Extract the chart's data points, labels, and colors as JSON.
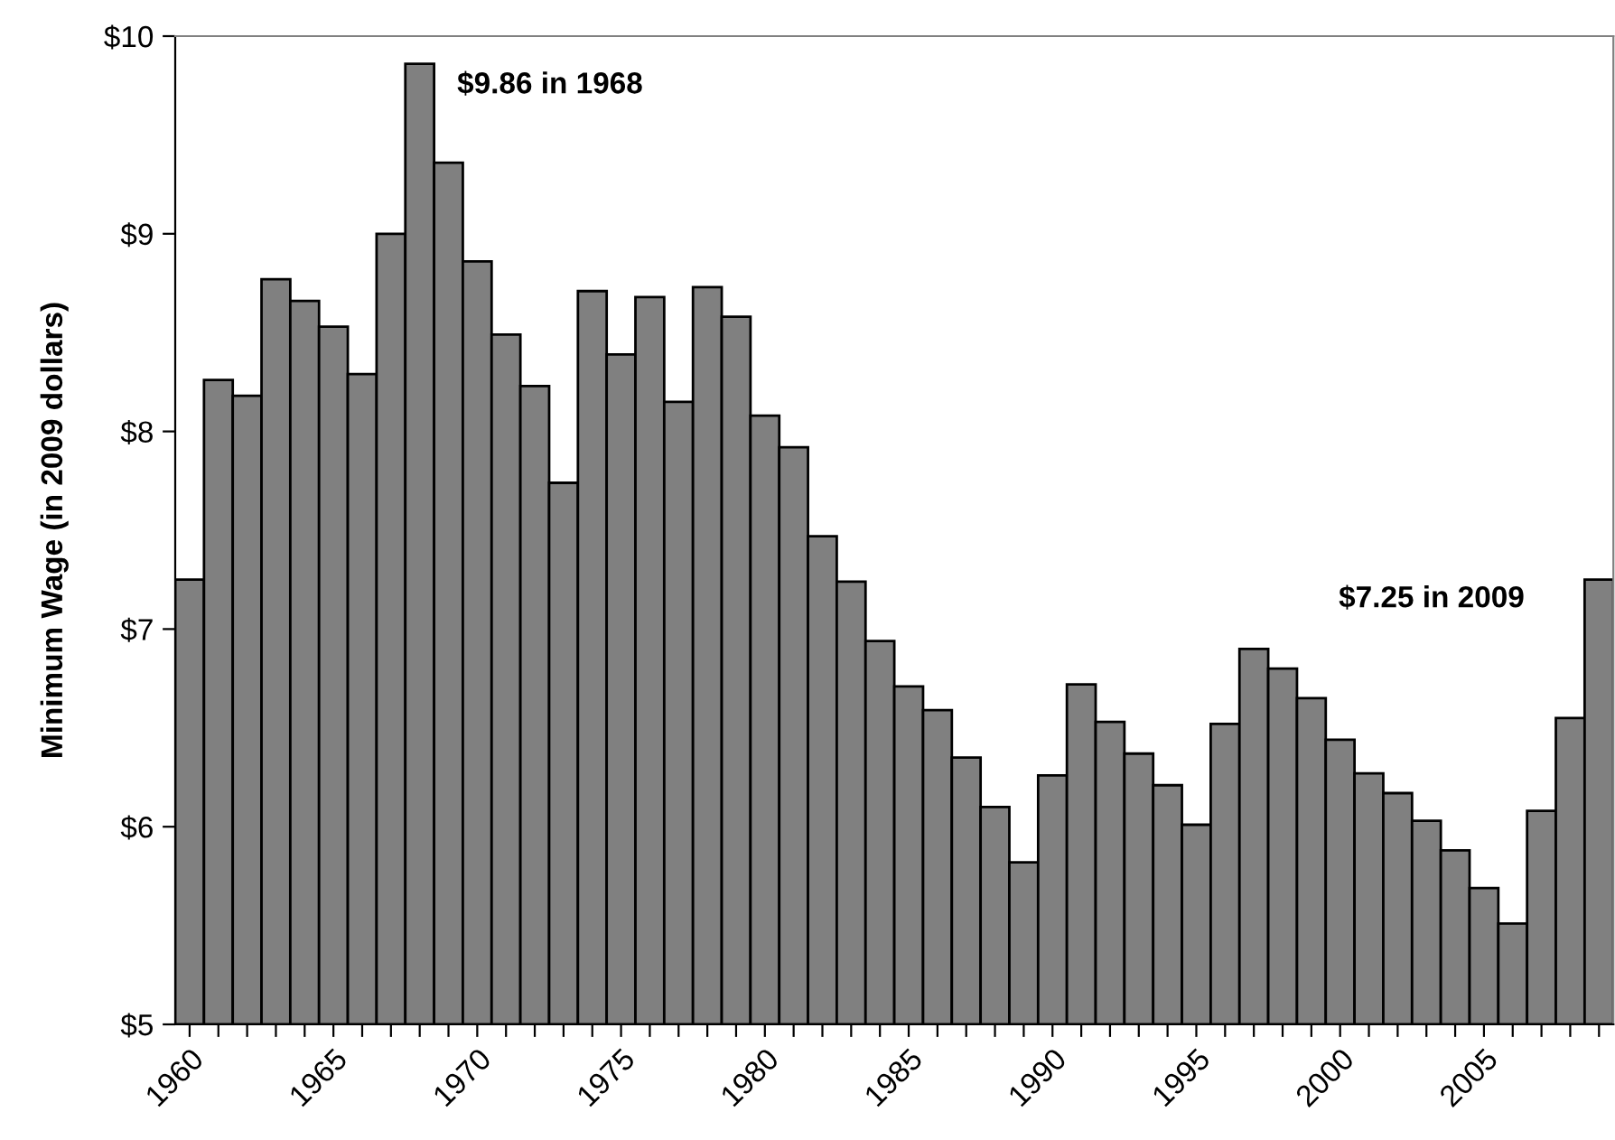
{
  "chart_data": {
    "type": "bar",
    "ylabel": "Minimum Wage (in 2009 dollars)",
    "categories": [
      "1960",
      null,
      null,
      null,
      null,
      "1965",
      null,
      null,
      null,
      null,
      "1970",
      null,
      null,
      null,
      null,
      "1975",
      null,
      null,
      null,
      null,
      "1980",
      null,
      null,
      null,
      null,
      "1985",
      null,
      null,
      null,
      null,
      "1990",
      null,
      null,
      null,
      null,
      "1995",
      null,
      null,
      null,
      null,
      "2000",
      null,
      null,
      null,
      null,
      "2005",
      null,
      null,
      null,
      null
    ],
    "values": [
      7.25,
      8.26,
      8.18,
      8.77,
      8.66,
      8.53,
      8.29,
      9.0,
      9.86,
      9.36,
      8.86,
      8.49,
      8.23,
      7.74,
      8.71,
      8.39,
      8.68,
      8.15,
      8.73,
      8.58,
      8.08,
      7.92,
      7.47,
      7.24,
      6.94,
      6.71,
      6.59,
      6.35,
      6.1,
      5.82,
      6.26,
      6.72,
      6.53,
      6.37,
      6.21,
      6.01,
      6.52,
      6.9,
      6.8,
      6.65,
      6.44,
      6.27,
      6.17,
      6.03,
      5.88,
      5.69,
      5.51,
      6.08,
      6.55,
      7.25
    ],
    "color": "#808080",
    "ylim": [
      5,
      10
    ],
    "yticks": [
      {
        "value": 5,
        "label": "$5"
      },
      {
        "value": 6,
        "label": "$6"
      },
      {
        "value": 7,
        "label": "$7"
      },
      {
        "value": 8,
        "label": "$8"
      },
      {
        "value": 9,
        "label": "$9"
      },
      {
        "value": 10,
        "label": "$10"
      }
    ],
    "annotations": [
      "$9.86 in 1968",
      "$7.25 in 2009"
    ],
    "grid": false,
    "legend": false
  }
}
